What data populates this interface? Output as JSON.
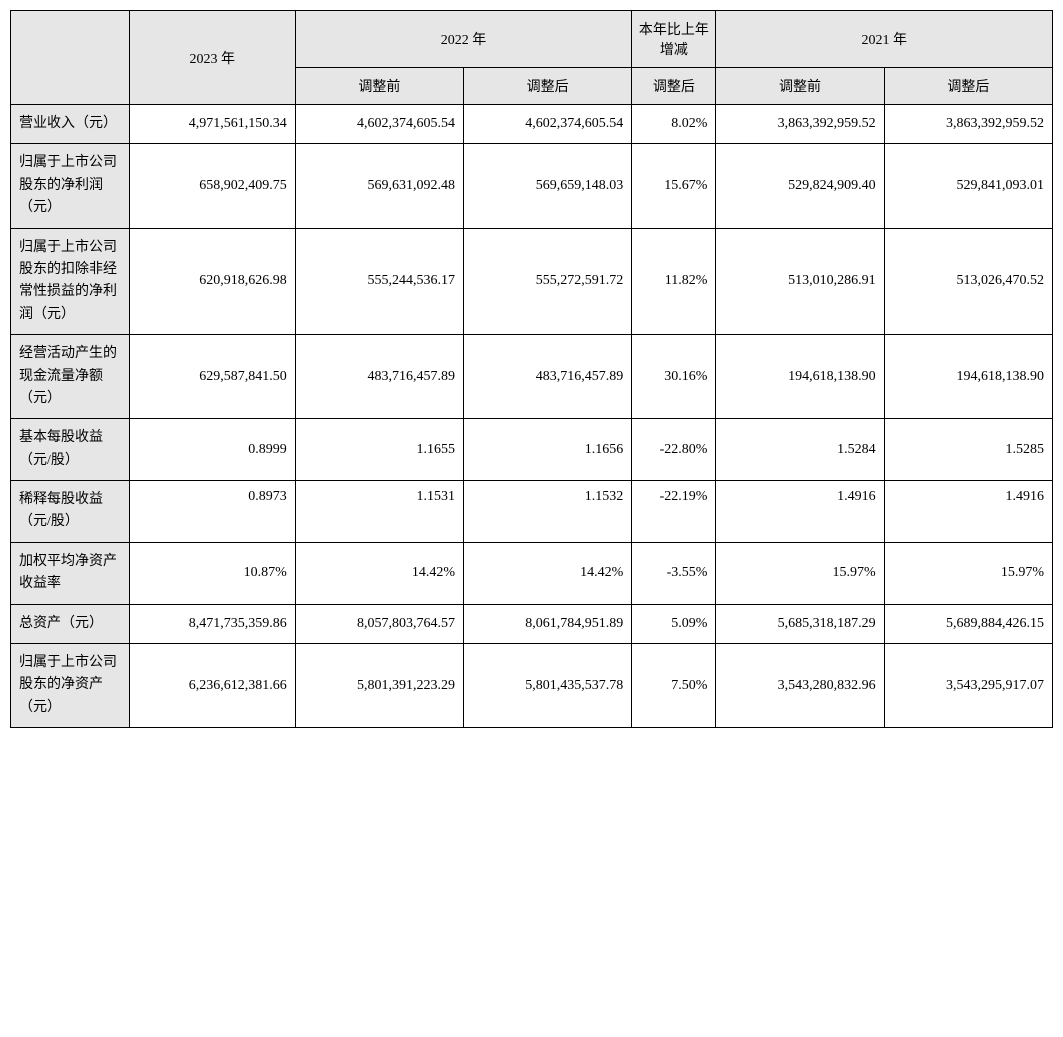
{
  "table": {
    "type": "table",
    "background_color": "#ffffff",
    "header_bg": "#e7e6e6",
    "border_color": "#000000",
    "font_family": "SimSun",
    "font_size_pt": 11,
    "columns": {
      "y2023": "2023 年",
      "y2022": "2022 年",
      "change": "本年比上年增减",
      "y2021": "2021 年",
      "sub_before": "调整前",
      "sub_after": "调整后"
    },
    "rows": [
      {
        "label": "营业收入（元）",
        "y2023": "4,971,561,150.34",
        "y2022_before": "4,602,374,605.54",
        "y2022_after": "4,602,374,605.54",
        "change_after": "8.02%",
        "y2021_before": "3,863,392,959.52",
        "y2021_after": "3,863,392,959.52"
      },
      {
        "label": "归属于上市公司股东的净利润（元）",
        "y2023": "658,902,409.75",
        "y2022_before": "569,631,092.48",
        "y2022_after": "569,659,148.03",
        "change_after": "15.67%",
        "y2021_before": "529,824,909.40",
        "y2021_after": "529,841,093.01"
      },
      {
        "label": "归属于上市公司股东的扣除非经常性损益的净利润（元）",
        "y2023": "620,918,626.98",
        "y2022_before": "555,244,536.17",
        "y2022_after": "555,272,591.72",
        "change_after": "11.82%",
        "y2021_before": "513,010,286.91",
        "y2021_after": "513,026,470.52"
      },
      {
        "label": "经营活动产生的现金流量净额（元）",
        "y2023": "629,587,841.50",
        "y2022_before": "483,716,457.89",
        "y2022_after": "483,716,457.89",
        "change_after": "30.16%",
        "y2021_before": "194,618,138.90",
        "y2021_after": "194,618,138.90"
      },
      {
        "label": "基本每股收益（元/股）",
        "y2023": "0.8999",
        "y2022_before": "1.1655",
        "y2022_after": "1.1656",
        "change_after": "-22.80%",
        "y2021_before": "1.5284",
        "y2021_after": "1.5285"
      },
      {
        "label": "稀释每股收益（元/股）",
        "y2023": "0.8973",
        "y2022_before": "1.1531",
        "y2022_after": "1.1532",
        "change_after": "-22.19%",
        "y2021_before": "1.4916",
        "y2021_after": "1.4916",
        "valign": "top"
      },
      {
        "label": "加权平均净资产收益率",
        "y2023": "10.87%",
        "y2022_before": "14.42%",
        "y2022_after": "14.42%",
        "change_after": "-3.55%",
        "y2021_before": "15.97%",
        "y2021_after": "15.97%"
      },
      {
        "label": "总资产（元）",
        "y2023": "8,471,735,359.86",
        "y2022_before": "8,057,803,764.57",
        "y2022_after": "8,061,784,951.89",
        "change_after": "5.09%",
        "y2021_before": "5,685,318,187.29",
        "y2021_after": "5,689,884,426.15"
      },
      {
        "label": "归属于上市公司股东的净资产（元）",
        "y2023": "6,236,612,381.66",
        "y2022_before": "5,801,391,223.29",
        "y2022_after": "5,801,435,537.78",
        "change_after": "7.50%",
        "y2021_before": "3,543,280,832.96",
        "y2021_after": "3,543,295,917.07"
      }
    ]
  }
}
